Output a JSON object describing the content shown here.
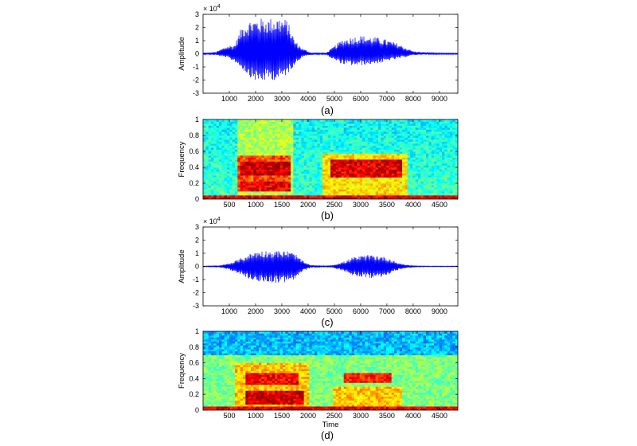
{
  "chart_data": [
    {
      "id": "a",
      "type": "line",
      "panel_label": "(a)",
      "ylabel": "Amplitude",
      "exponent_label": "× 10",
      "exponent_power": "4",
      "xlim": [
        0,
        9700
      ],
      "ylim": [
        -3,
        3
      ],
      "xticks": [
        1000,
        2000,
        3000,
        4000,
        5000,
        6000,
        7000,
        8000,
        9000
      ],
      "xtick_labels": [
        "1000",
        "2000",
        "3000",
        "4000",
        "5000",
        "6000",
        "7000",
        "8000",
        "9000"
      ],
      "yticks": [
        -3,
        -2,
        -1,
        0,
        1,
        2,
        3
      ],
      "ytick_labels": [
        "-3",
        "-2",
        "-1",
        "0",
        "1",
        "2",
        "3"
      ],
      "color": "#0000ff",
      "envelope": {
        "x": [
          0,
          500,
          900,
          1200,
          1500,
          1800,
          2100,
          2500,
          2900,
          3200,
          3500,
          3800,
          4100,
          4500,
          4700,
          5000,
          5300,
          5700,
          6000,
          6400,
          6800,
          7100,
          7400,
          7800,
          8000,
          8500,
          9000,
          9700
        ],
        "upper": [
          0.05,
          0.15,
          0.6,
          0.7,
          2.2,
          2.6,
          2.7,
          2.7,
          2.8,
          2.6,
          1.0,
          0.4,
          0.1,
          0.05,
          0.1,
          0.6,
          1.1,
          1.3,
          1.4,
          1.3,
          1.2,
          1.0,
          0.8,
          0.4,
          0.2,
          0.1,
          0.05,
          0.05
        ],
        "lower": [
          -0.05,
          -0.1,
          -0.3,
          -0.6,
          -1.2,
          -1.8,
          -2.2,
          -2.0,
          -2.0,
          -1.6,
          -0.8,
          -0.2,
          -0.1,
          -0.05,
          -0.1,
          -0.5,
          -0.8,
          -0.9,
          -0.9,
          -0.8,
          -0.7,
          -0.5,
          -0.4,
          -0.2,
          -0.1,
          -0.05,
          -0.05,
          -0.05
        ]
      }
    },
    {
      "id": "b",
      "type": "heatmap",
      "panel_label": "(b)",
      "ylabel": "Frequency",
      "xlim": [
        0,
        4850
      ],
      "ylim": [
        0,
        1
      ],
      "xticks": [
        500,
        1000,
        1500,
        2000,
        2500,
        3000,
        3500,
        4000,
        4500
      ],
      "xtick_labels": [
        "500",
        "1000",
        "1500",
        "2000",
        "2500",
        "3000",
        "3500",
        "4000",
        "4500"
      ],
      "yticks": [
        0,
        0.2,
        0.4,
        0.6,
        0.8,
        1
      ],
      "ytick_labels": [
        "0",
        "0.2",
        "0.4",
        "0.6",
        "0.8",
        "1"
      ],
      "colormap": "jet",
      "regions": [
        {
          "x": [
            650,
            1700
          ],
          "y": [
            0,
            1
          ],
          "level": 0.55
        },
        {
          "x": [
            650,
            1650
          ],
          "y": [
            0.1,
            0.55
          ],
          "level": 0.8
        },
        {
          "x": [
            700,
            1650
          ],
          "y": [
            0.3,
            0.48
          ],
          "level": 0.92
        },
        {
          "x": [
            700,
            1650
          ],
          "y": [
            0.1,
            0.22
          ],
          "level": 0.9
        },
        {
          "x": [
            2250,
            3900
          ],
          "y": [
            0.05,
            0.58
          ],
          "level": 0.65
        },
        {
          "x": [
            2450,
            3800
          ],
          "y": [
            0.28,
            0.5
          ],
          "level": 0.9
        },
        {
          "x": [
            0,
            4850
          ],
          "y": [
            0,
            0.05
          ],
          "level": 0.9
        }
      ],
      "background_level": 0.38
    },
    {
      "id": "c",
      "type": "line",
      "panel_label": "(c)",
      "ylabel": "Amplitude",
      "exponent_label": "× 10",
      "exponent_power": "4",
      "xlim": [
        0,
        9700
      ],
      "ylim": [
        -3,
        3
      ],
      "xticks": [
        1000,
        2000,
        3000,
        4000,
        5000,
        6000,
        7000,
        8000,
        9000
      ],
      "xtick_labels": [
        "1000",
        "2000",
        "3000",
        "4000",
        "5000",
        "6000",
        "7000",
        "8000",
        "9000"
      ],
      "yticks": [
        -3,
        -2,
        -1,
        0,
        1,
        2,
        3
      ],
      "ytick_labels": [
        "-3",
        "-2",
        "-1",
        "0",
        "1",
        "2",
        "3"
      ],
      "color": "#0000ff",
      "envelope": {
        "x": [
          0,
          600,
          900,
          1200,
          1500,
          1800,
          2100,
          2500,
          2900,
          3200,
          3500,
          3800,
          4100,
          4500,
          4800,
          5100,
          5400,
          5700,
          6000,
          6400,
          6800,
          7100,
          7400,
          7700,
          8000,
          8500,
          9000,
          9700
        ],
        "upper": [
          0.03,
          0.05,
          0.2,
          0.4,
          0.7,
          1.0,
          1.2,
          1.2,
          1.2,
          1.2,
          1.0,
          0.4,
          0.1,
          0.05,
          0.05,
          0.2,
          0.4,
          0.7,
          0.8,
          0.9,
          0.8,
          0.6,
          0.3,
          0.15,
          0.05,
          0.03,
          0.03,
          0.03
        ],
        "lower": [
          -0.03,
          -0.05,
          -0.2,
          -0.4,
          -0.7,
          -1.0,
          -1.2,
          -1.2,
          -1.3,
          -1.2,
          -1.0,
          -0.4,
          -0.1,
          -0.05,
          -0.05,
          -0.2,
          -0.4,
          -0.7,
          -0.8,
          -0.9,
          -0.8,
          -0.6,
          -0.3,
          -0.15,
          -0.05,
          -0.03,
          -0.03,
          -0.03
        ]
      }
    },
    {
      "id": "d",
      "type": "heatmap",
      "panel_label": "(d)",
      "ylabel": "Frequency",
      "xlabel": "Time",
      "xlim": [
        0,
        4850
      ],
      "ylim": [
        0,
        1
      ],
      "xticks": [
        500,
        1000,
        1500,
        2000,
        2500,
        3000,
        3500,
        4000,
        4500
      ],
      "xtick_labels": [
        "500",
        "1000",
        "1500",
        "2000",
        "2500",
        "3000",
        "3500",
        "4000",
        "4500"
      ],
      "yticks": [
        0,
        0.2,
        0.4,
        0.6,
        0.8,
        1
      ],
      "ytick_labels": [
        "0",
        "0.2",
        "0.4",
        "0.6",
        "0.8",
        "1"
      ],
      "colormap": "jet",
      "regions": [
        {
          "x": [
            0,
            4850
          ],
          "y": [
            0,
            0.7
          ],
          "level": 0.5
        },
        {
          "x": [
            600,
            2000
          ],
          "y": [
            0.05,
            0.6
          ],
          "level": 0.68
        },
        {
          "x": [
            800,
            1800
          ],
          "y": [
            0.33,
            0.48
          ],
          "level": 0.88
        },
        {
          "x": [
            800,
            1900
          ],
          "y": [
            0.08,
            0.25
          ],
          "level": 0.92
        },
        {
          "x": [
            2700,
            3600
          ],
          "y": [
            0.35,
            0.48
          ],
          "level": 0.85
        },
        {
          "x": [
            2500,
            3800
          ],
          "y": [
            0.05,
            0.3
          ],
          "level": 0.68
        },
        {
          "x": [
            0,
            4850
          ],
          "y": [
            0,
            0.05
          ],
          "level": 0.9
        }
      ],
      "background_level": 0.3
    }
  ]
}
